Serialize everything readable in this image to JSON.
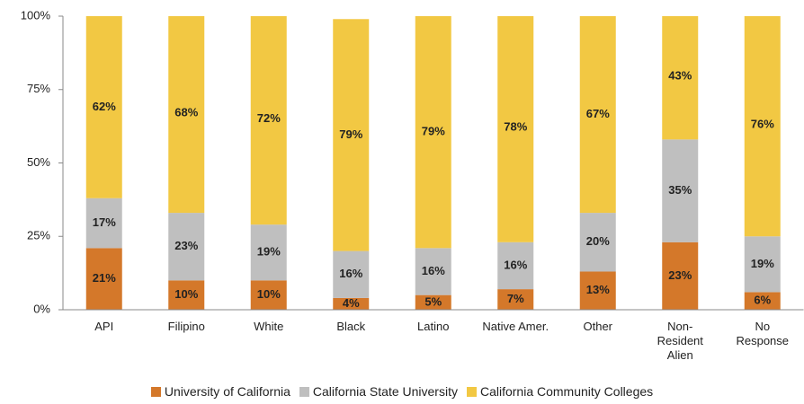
{
  "chart_data": {
    "type": "stacked_bar",
    "categories": [
      "API",
      "Filipino",
      "White",
      "Black",
      "Latino",
      "Native Amer.",
      "Other",
      "Non-Resident Alien",
      "No Response"
    ],
    "series": [
      {
        "name": "University of California",
        "color": "#d4782a",
        "values": [
          21,
          10,
          10,
          4,
          5,
          7,
          13,
          23,
          6
        ],
        "value_labels": [
          "21%",
          "10%",
          "10%",
          "4%",
          "5%",
          "7%",
          "13%",
          "23%",
          "6%"
        ]
      },
      {
        "name": "California State University",
        "color": "#bfbfbf",
        "values": [
          17,
          23,
          19,
          16,
          16,
          16,
          20,
          35,
          19
        ],
        "value_labels": [
          "17%",
          "23%",
          "19%",
          "16%",
          "16%",
          "16%",
          "20%",
          "35%",
          "19%"
        ]
      },
      {
        "name": "California Community Colleges",
        "color": "#f2c843",
        "values": [
          62,
          68,
          72,
          79,
          79,
          78,
          67,
          43,
          76
        ],
        "value_labels": [
          "62%",
          "68%",
          "72%",
          "79%",
          "79%",
          "78%",
          "67%",
          "43%",
          "76%"
        ]
      }
    ],
    "ylim": [
      0,
      100
    ],
    "yticks": [
      {
        "value": 0,
        "label": "0%"
      },
      {
        "value": 25,
        "label": "25%"
      },
      {
        "value": 50,
        "label": "50%"
      },
      {
        "value": 75,
        "label": "75%"
      },
      {
        "value": 100,
        "label": "100%"
      }
    ],
    "legend": "bottom"
  }
}
